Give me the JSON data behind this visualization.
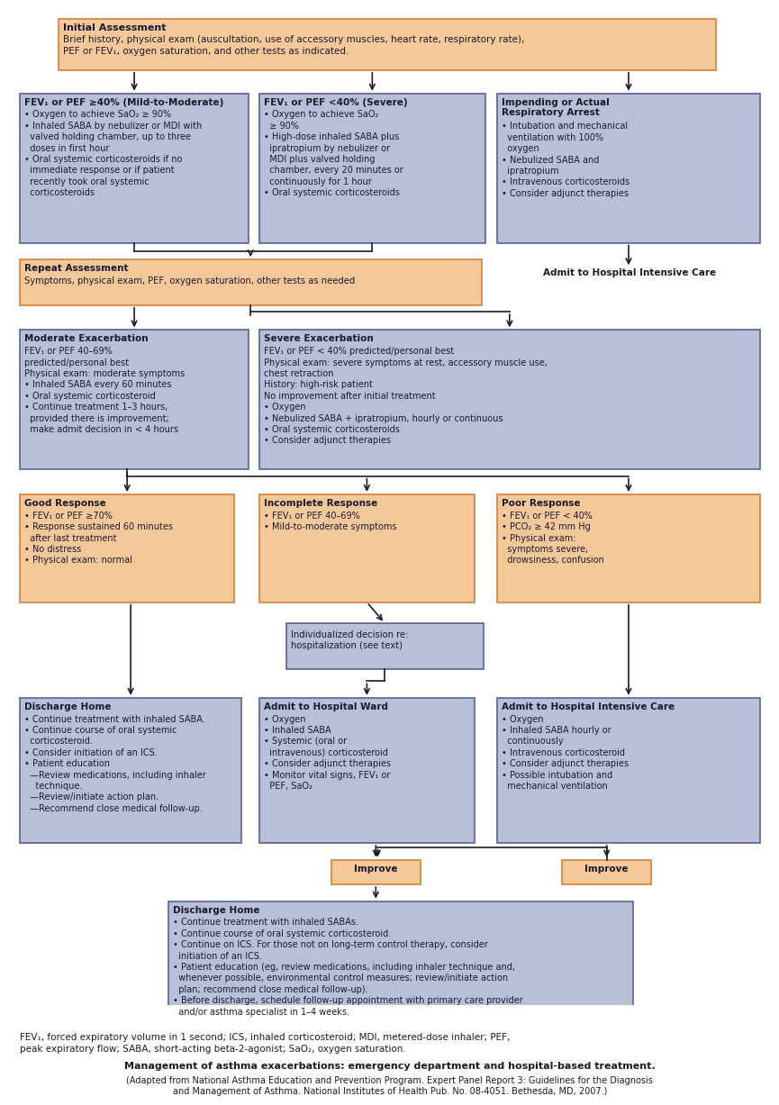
{
  "orange_bg": "#F5C89A",
  "orange_border": "#D4813A",
  "blue_bg": "#B8C0D8",
  "blue_border": "#5A6290",
  "text_color": "#1A1A2E",
  "ac": "#1A1A2E",
  "title": "Management of asthma exacerbations: emergency department and hospital-based treatment.",
  "caption": "(Adapted from National Asthma Education and Prevention Program. Expert Panel Report 3: Guidelines for the Diagnosis\nand Management of Asthma. National Institutes of Health Pub. No. 08-4051. Bethesda, MD, 2007.)",
  "footnote": "FEV₁, forced expiratory volume in 1 second; ICS, inhaled corticosteroid; MDI, metered-dose inhaler; PEF,\npeak expiratory flow; SABA, short-acting beta-2-agonist; SaO₂, oxygen saturation."
}
